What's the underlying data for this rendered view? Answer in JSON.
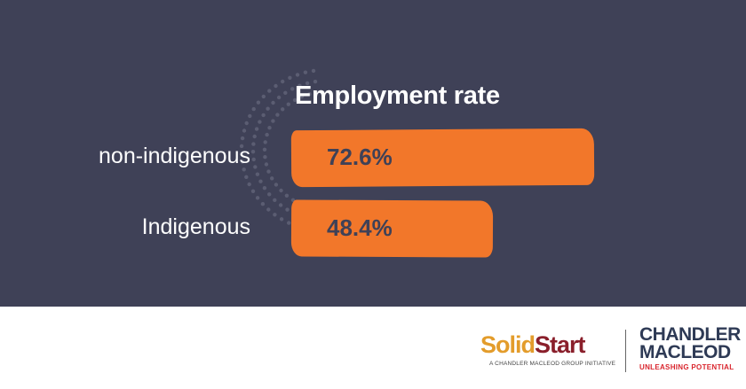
{
  "chart_data": {
    "type": "bar",
    "orientation": "horizontal",
    "title": "Employment rate",
    "categories": [
      "non-indigenous",
      "Indigenous"
    ],
    "values": [
      72.6,
      48.4
    ],
    "value_labels": [
      "72.6%",
      "48.4%"
    ],
    "xlim": [
      0,
      100
    ],
    "grid": false,
    "colors": {
      "bar": "#f2772a",
      "background": "#3f4157",
      "label": "#ffffff",
      "value_text": "#3f4157"
    }
  },
  "footer": {
    "solidstart_logo": {
      "part1": "Solid",
      "part2": "Start",
      "tagline": "A CHANDLER MACLEOD GROUP INITIATIVE"
    },
    "chandler_macleod_logo": {
      "line1": "CHANDLER",
      "line2": "MACLEOD",
      "tagline": "UNLEASHING POTENTIAL"
    }
  }
}
